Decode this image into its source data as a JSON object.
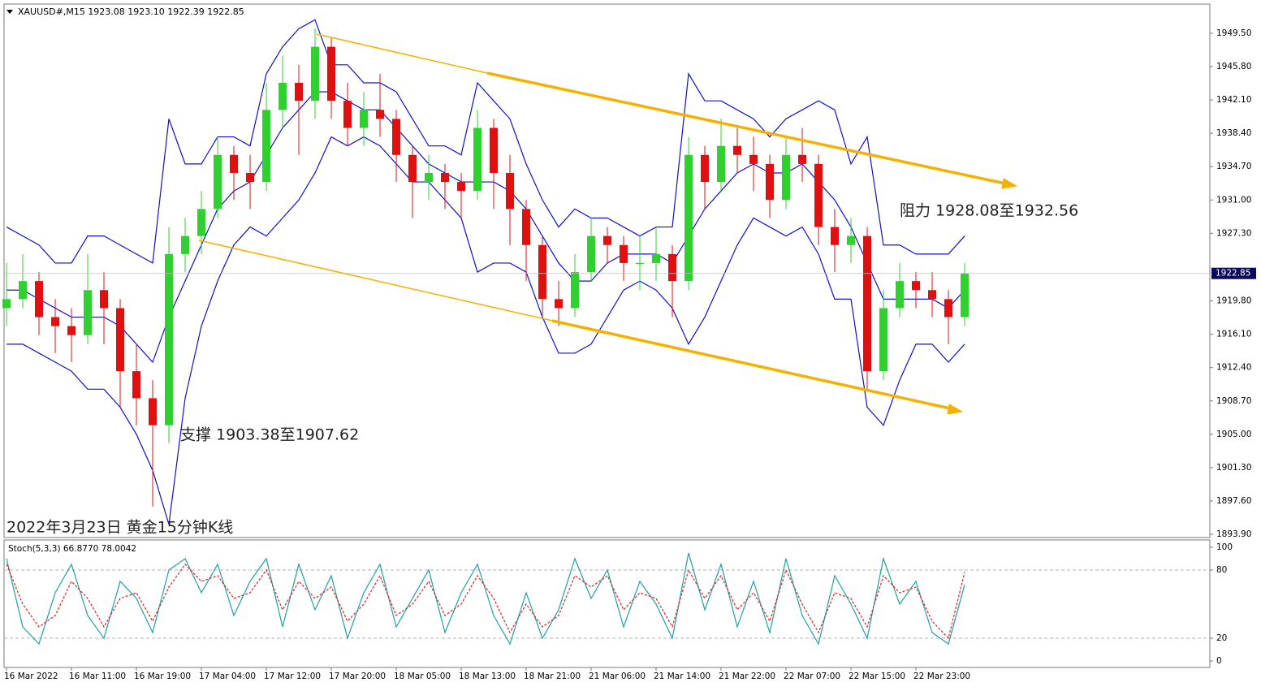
{
  "header": "XAUUSD#,M15  1923.08 1923.10 1922.39 1922.85",
  "chart_data": [
    {
      "type": "candlestick",
      "categories": [
        "16 Mar 2022",
        null,
        null,
        null,
        "16 Mar 11:00",
        null,
        null,
        null,
        "16 Mar 19:00",
        null,
        null,
        null,
        "17 Mar 04:00",
        null,
        null,
        null,
        "17 Mar 12:00",
        null,
        null,
        null,
        "17 Mar 20:00",
        null,
        null,
        null,
        "18 Mar 05:00",
        null,
        null,
        null,
        "18 Mar 13:00",
        null,
        null,
        null,
        "18 Mar 21:00",
        null,
        null,
        null,
        "21 Mar 06:00",
        null,
        null,
        null,
        "21 Mar 14:00",
        null,
        null,
        null,
        "21 Mar 22:00",
        null,
        null,
        null,
        "22 Mar 07:00",
        null,
        null,
        null,
        "22 Mar 15:00",
        null,
        null,
        null,
        "22 Mar 23:00",
        null,
        null,
        null
      ],
      "ohlc": [
        [
          1919,
          1924,
          1917,
          1920
        ],
        [
          1920,
          1925,
          1919,
          1922
        ],
        [
          1922,
          1923,
          1916,
          1918
        ],
        [
          1918,
          1920,
          1914,
          1917
        ],
        [
          1917,
          1919,
          1913,
          1916
        ],
        [
          1916,
          1925,
          1915,
          1921
        ],
        [
          1921,
          1923,
          1915,
          1919
        ],
        [
          1919,
          1920,
          1908,
          1912
        ],
        [
          1912,
          1915,
          1906,
          1909
        ],
        [
          1909,
          1911,
          1897,
          1906
        ],
        [
          1906,
          1928,
          1904,
          1925
        ],
        [
          1925,
          1929,
          1923,
          1927
        ],
        [
          1927,
          1932,
          1925,
          1930
        ],
        [
          1930,
          1938,
          1929,
          1936
        ],
        [
          1936,
          1937,
          1931,
          1934
        ],
        [
          1934,
          1936,
          1930,
          1933
        ],
        [
          1933,
          1944,
          1932,
          1941
        ],
        [
          1941,
          1947,
          1939,
          1944
        ],
        [
          1944,
          1946,
          1936,
          1942
        ],
        [
          1942,
          1950,
          1940,
          1948
        ],
        [
          1948,
          1949,
          1940,
          1942
        ],
        [
          1942,
          1944,
          1937,
          1939
        ],
        [
          1939,
          1943,
          1937,
          1941
        ],
        [
          1941,
          1945,
          1938,
          1940
        ],
        [
          1940,
          1941,
          1933,
          1936
        ],
        [
          1936,
          1937,
          1929,
          1933
        ],
        [
          1933,
          1936,
          1931,
          1934
        ],
        [
          1934,
          1935,
          1930,
          1933
        ],
        [
          1933,
          1934,
          1929,
          1932
        ],
        [
          1932,
          1941,
          1931,
          1939
        ],
        [
          1939,
          1940,
          1930,
          1934
        ],
        [
          1934,
          1936,
          1926,
          1930
        ],
        [
          1930,
          1931,
          1922,
          1926
        ],
        [
          1926,
          1927,
          1918,
          1920
        ],
        [
          1920,
          1922,
          1917,
          1919
        ],
        [
          1919,
          1925,
          1918,
          1923
        ],
        [
          1923,
          1929,
          1922,
          1927
        ],
        [
          1927,
          1928,
          1924,
          1926
        ],
        [
          1926,
          1927,
          1922,
          1924
        ],
        [
          1924,
          1927,
          1921,
          1924
        ],
        [
          1924,
          1928,
          1922,
          1925
        ],
        [
          1925,
          1926,
          1918,
          1922
        ],
        [
          1922,
          1938,
          1921,
          1936
        ],
        [
          1936,
          1937,
          1930,
          1933
        ],
        [
          1933,
          1940,
          1932,
          1937
        ],
        [
          1937,
          1939,
          1934,
          1936
        ],
        [
          1936,
          1938,
          1932,
          1935
        ],
        [
          1935,
          1936,
          1929,
          1931
        ],
        [
          1931,
          1938,
          1930,
          1936
        ],
        [
          1936,
          1939,
          1933,
          1935
        ],
        [
          1935,
          1936,
          1926,
          1928
        ],
        [
          1928,
          1930,
          1923,
          1926
        ],
        [
          1926,
          1929,
          1924,
          1927
        ],
        [
          1927,
          1928,
          1910,
          1912
        ],
        [
          1912,
          1921,
          1911,
          1919
        ],
        [
          1919,
          1924,
          1918,
          1922
        ],
        [
          1922,
          1923,
          1919,
          1921
        ],
        [
          1921,
          1923,
          1918,
          1920
        ],
        [
          1920,
          1921,
          1915,
          1918
        ],
        [
          1918,
          1924,
          1917,
          1922.85
        ]
      ],
      "up_color": "#2fd12f",
      "down_color": "#e01010",
      "bands": {
        "color": "#1010c8",
        "upper": [
          1928,
          1927,
          1926,
          1924,
          1924,
          1927,
          1927,
          1926,
          1925,
          1924,
          1940,
          1935,
          1935,
          1938,
          1938,
          1937,
          1945,
          1948,
          1950,
          1951,
          1946,
          1946,
          1944,
          1944,
          1943,
          1940,
          1937,
          1937,
          1936,
          1944,
          1942,
          1940,
          1935,
          1931,
          1928,
          1930,
          1929,
          1929,
          1928,
          1927,
          1928,
          1928,
          1945,
          1942,
          1942,
          1941,
          1940,
          1938,
          1940,
          1941,
          1942,
          1941,
          1935,
          1938,
          1926,
          1926,
          1925,
          1925,
          1925,
          1927
        ],
        "middle": [
          1921,
          1921,
          1920,
          1919,
          1918,
          1918,
          1918,
          1917,
          1915,
          1913,
          1918,
          1922,
          1926,
          1930,
          1932,
          1933,
          1936,
          1939,
          1941,
          1943,
          1943,
          1942,
          1941,
          1941,
          1939,
          1937,
          1935,
          1934,
          1933,
          1933,
          1933,
          1932,
          1930,
          1927,
          1924,
          1922,
          1922,
          1924,
          1925,
          1925,
          1925,
          1924,
          1927,
          1930,
          1932,
          1934,
          1935,
          1934,
          1934,
          1935,
          1933,
          1931,
          1928,
          1924,
          1920,
          1920,
          1920,
          1920,
          1919,
          1921
        ],
        "lower": [
          1915,
          1915,
          1914,
          1913,
          1912,
          1910,
          1910,
          1908,
          1905,
          1901,
          1895,
          1909,
          1917,
          1922,
          1926,
          1928,
          1927,
          1929,
          1931,
          1934,
          1938,
          1937,
          1938,
          1937,
          1935,
          1933,
          1933,
          1931,
          1929,
          1923,
          1924,
          1924,
          1923,
          1918,
          1914,
          1914,
          1915,
          1918,
          1921,
          1922,
          1921,
          1919,
          1915,
          1918,
          1922,
          1926,
          1929,
          1928,
          1927,
          1928,
          1925,
          1920,
          1920,
          1908,
          1906,
          1911,
          1915,
          1915,
          1913,
          1915
        ]
      },
      "current_price": 1922.85,
      "ylim": [
        1893.54,
        1952.74
      ],
      "yticks": [
        {
          "value": 1949.5,
          "label": "1949.50"
        },
        {
          "value": 1945.8,
          "label": "1945.80"
        },
        {
          "value": 1942.1,
          "label": "1942.10"
        },
        {
          "value": 1938.4,
          "label": "1938.40"
        },
        {
          "value": 1934.7,
          "label": "1934.70"
        },
        {
          "value": 1931,
          "label": "1931.00"
        },
        {
          "value": 1927.3,
          "label": "1927.30"
        },
        {
          "value": 1919.8,
          "label": "1919.80"
        },
        {
          "value": 1916.1,
          "label": "1916.10"
        },
        {
          "value": 1912.4,
          "label": "1912.40"
        },
        {
          "value": 1908.7,
          "label": "1908.70"
        },
        {
          "value": 1905,
          "label": "1905.00"
        },
        {
          "value": 1901.3,
          "label": "1901.30"
        },
        {
          "value": 1897.6,
          "label": "1897.60"
        },
        {
          "value": 1893.9,
          "label": "1893.90"
        }
      ],
      "annotations": [
        "阻力 1928.08至1932.56",
        "支撑 1903.38至1907.62",
        "2022年3月23日 黄金15分钟K线"
      ]
    },
    {
      "type": "line",
      "title": "Stoch(5,3,3) 66.8770 78.0042",
      "series": [
        {
          "color": "#20a0a0",
          "values": [
            90,
            30,
            15,
            60,
            85,
            40,
            20,
            70,
            55,
            25,
            80,
            90,
            60,
            85,
            40,
            70,
            90,
            30,
            85,
            45,
            75,
            20,
            60,
            85,
            30,
            55,
            80,
            25,
            60,
            85,
            40,
            15,
            60,
            20,
            45,
            90,
            55,
            80,
            30,
            70,
            50,
            20,
            95,
            45,
            85,
            30,
            70,
            25,
            90,
            40,
            15,
            75,
            50,
            20,
            90,
            50,
            70,
            25,
            15,
            67
          ]
        },
        {
          "color": "#e02020",
          "values": [
            85,
            50,
            30,
            40,
            70,
            55,
            30,
            55,
            60,
            35,
            65,
            85,
            70,
            75,
            55,
            60,
            80,
            45,
            70,
            55,
            65,
            35,
            50,
            75,
            40,
            50,
            70,
            40,
            50,
            75,
            55,
            25,
            50,
            30,
            40,
            75,
            65,
            75,
            45,
            60,
            55,
            30,
            80,
            55,
            75,
            45,
            60,
            35,
            80,
            50,
            25,
            60,
            55,
            30,
            75,
            60,
            65,
            35,
            20,
            78
          ]
        }
      ],
      "ylim": [
        -5.7,
        106.4
      ],
      "yticks": [
        100,
        80,
        20,
        0
      ],
      "dashed_ticks": [
        80,
        20
      ]
    }
  ]
}
